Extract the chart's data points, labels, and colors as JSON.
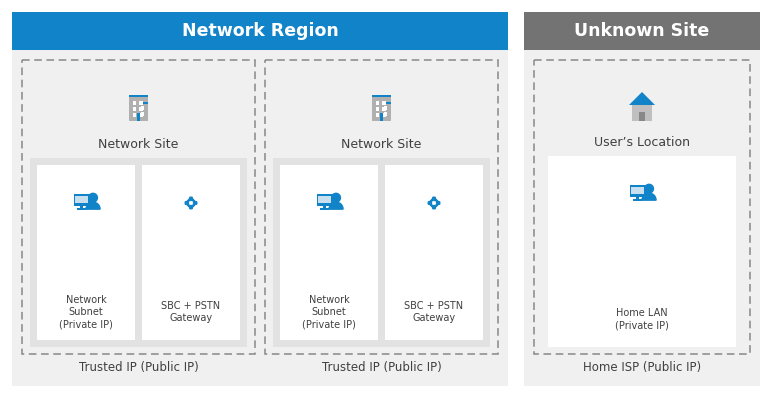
{
  "bg_color": "#ffffff",
  "network_region_header_color": "#1183c8",
  "unknown_site_header_color": "#737373",
  "header_text_color": "#ffffff",
  "outer_bg_color": "#f0f0f0",
  "dashed_box_color": "#888888",
  "white_box_color": "#ffffff",
  "inner_gray_color": "#e2e2e2",
  "blue_icon_color": "#1183c8",
  "gray_icon_color": "#b0b0b0",
  "text_color": "#404040",
  "network_region_title": "Network Region",
  "unknown_site_title": "Unknown Site",
  "site1_label": "Network Site",
  "site2_label": "Network Site",
  "site3_label": "User’s Location",
  "subnet1_label": "Network\nSubnet\n(Private IP)",
  "gateway1_label": "SBC + PSTN\nGateway",
  "subnet2_label": "Network\nSubnet\n(Private IP)",
  "gateway2_label": "SBC + PSTN\nGateway",
  "homelan_label": "Home LAN\n(Private IP)",
  "trusted1_label": "Trusted IP (Public IP)",
  "trusted2_label": "Trusted IP (Public IP)",
  "homeisp_label": "Home ISP (Public IP)",
  "figw": 7.72,
  "figh": 3.98,
  "dpi": 100
}
